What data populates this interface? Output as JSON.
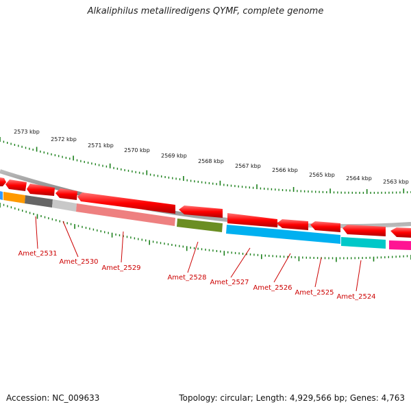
{
  "title": "Alkaliphilus metalliredigens QYMF, complete genome",
  "footer": {
    "accession": "Accession: NC_009633",
    "summary": "Topology: circular; Length: 4,929,566 bp; Genes: 4,763"
  },
  "scale": {
    "labels": [
      "2573 kbp",
      "2572 kbp",
      "2571 kbp",
      "2570 kbp",
      "2569 kbp",
      "2568 kbp",
      "2567 kbp",
      "2566 kbp",
      "2565 kbp",
      "2564 kbp",
      "2563 kbp"
    ]
  },
  "genes": [
    {
      "label": "Amet_2531"
    },
    {
      "label": "Amet_2530"
    },
    {
      "label": "Amet_2529"
    },
    {
      "label": "Amet_2528"
    },
    {
      "label": "Amet_2527"
    },
    {
      "label": "Amet_2526"
    },
    {
      "label": "Amet_2525"
    },
    {
      "label": "Amet_2524"
    }
  ],
  "colors": {
    "cds": "#ff0000",
    "backbone": "#888888",
    "ticks": "#1a7f1a",
    "label": "#cc0000",
    "cog_orange": "#ff9900",
    "cog_darkgray": "#666666",
    "cog_lightgray": "#c8c8c8",
    "cog_pink": "#ee8080",
    "cog_olive": "#6b8e23",
    "cog_cyan": "#00b0f0",
    "cog_teal": "#00c8c8",
    "cog_magenta": "#ff1493",
    "cog_blue": "#3399ff"
  }
}
